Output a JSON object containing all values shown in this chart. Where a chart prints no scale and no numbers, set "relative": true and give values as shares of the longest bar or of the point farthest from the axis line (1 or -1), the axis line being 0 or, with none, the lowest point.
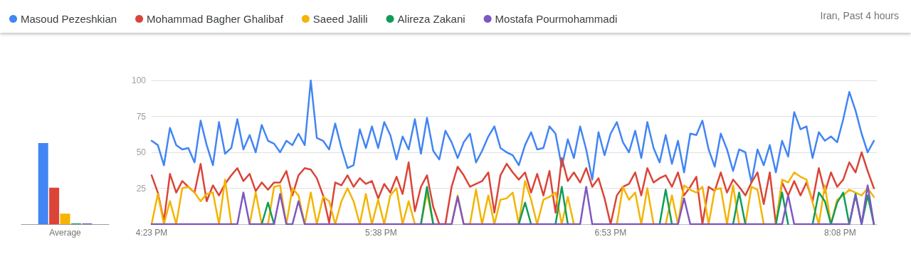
{
  "chart_data": [
    {
      "type": "bar",
      "relative": true,
      "categories": [
        "Average"
      ],
      "series": [
        {
          "color": "#4285f4",
          "values": [
            1
          ]
        },
        {
          "color": "#db4437",
          "values": [
            0.45
          ]
        },
        {
          "color": "#f4b400",
          "values": [
            0.13
          ]
        },
        {
          "color": "#0f9d58",
          "values": [
            0.01
          ]
        },
        {
          "color": "#7e57c2",
          "values": [
            0.01
          ]
        }
      ]
    },
    {
      "type": "line",
      "subtitle": "Iran, Past 4 hours",
      "legend": "top",
      "grid": "y",
      "marker": "none",
      "xlim": [
        16.383,
        20.333
      ],
      "ylim": [
        0,
        100
      ],
      "yticks": [
        25,
        50,
        75,
        100
      ],
      "xticks": [
        {
          "value": 16.383,
          "label": "4:23 PM"
        },
        {
          "value": 17.633,
          "label": "5:38 PM"
        },
        {
          "value": 18.883,
          "label": "6:53 PM"
        },
        {
          "value": 20.133,
          "label": "8:08 PM"
        }
      ],
      "x": [
        16.383,
        16.417,
        16.45,
        16.483,
        16.517,
        16.55,
        16.583,
        16.617,
        16.65,
        16.683,
        16.717,
        16.75,
        16.783,
        16.817,
        16.85,
        16.883,
        16.917,
        16.95,
        16.983,
        17.017,
        17.05,
        17.083,
        17.117,
        17.15,
        17.183,
        17.217,
        17.25,
        17.283,
        17.317,
        17.35,
        17.383,
        17.417,
        17.45,
        17.483,
        17.517,
        17.55,
        17.583,
        17.617,
        17.65,
        17.683,
        17.717,
        17.75,
        17.783,
        17.817,
        17.85,
        17.883,
        17.917,
        17.95,
        17.983,
        18.017,
        18.05,
        18.083,
        18.117,
        18.15,
        18.183,
        18.217,
        18.25,
        18.283,
        18.317,
        18.35,
        18.383,
        18.417,
        18.45,
        18.483,
        18.517,
        18.55,
        18.583,
        18.617,
        18.65,
        18.683,
        18.717,
        18.75,
        18.783,
        18.817,
        18.85,
        18.883,
        18.917,
        18.95,
        18.983,
        19.017,
        19.05,
        19.083,
        19.117,
        19.15,
        19.183,
        19.217,
        19.25,
        19.283,
        19.317,
        19.35,
        19.383,
        19.417,
        19.45,
        19.483,
        19.517,
        19.55,
        19.583,
        19.617,
        19.65,
        19.683,
        19.717,
        19.75,
        19.783,
        19.817,
        19.85,
        19.883,
        19.917,
        19.95,
        19.983,
        20.017,
        20.05,
        20.083,
        20.117,
        20.15,
        20.183,
        20.217,
        20.25,
        20.283,
        20.317
      ],
      "series": [
        {
          "name": "Masoud Pezeshkian",
          "color": "#4285f4",
          "values": [
            58,
            55,
            41,
            67,
            55,
            52,
            53,
            43,
            72,
            55,
            41,
            71,
            49,
            53,
            73,
            52,
            62,
            50,
            69,
            58,
            56,
            50,
            58,
            55,
            63,
            55,
            100,
            60,
            58,
            52,
            70,
            53,
            39,
            41,
            66,
            53,
            68,
            53,
            71,
            62,
            45,
            61,
            52,
            73,
            49,
            74,
            51,
            45,
            65,
            57,
            46,
            57,
            63,
            43,
            51,
            61,
            68,
            53,
            50,
            48,
            41,
            55,
            64,
            52,
            53,
            68,
            63,
            40,
            59,
            46,
            68,
            52,
            31,
            64,
            48,
            63,
            71,
            57,
            50,
            65,
            46,
            71,
            53,
            43,
            62,
            42,
            58,
            36,
            63,
            62,
            72,
            52,
            40,
            63,
            52,
            37,
            52,
            50,
            29,
            52,
            41,
            55,
            36,
            58,
            47,
            78,
            66,
            68,
            46,
            64,
            58,
            61,
            57,
            73,
            92,
            79,
            63,
            50,
            58
          ]
        },
        {
          "name": "Mohammad Bagher Ghalibaf",
          "color": "#db4437",
          "values": [
            34,
            22,
            2,
            35,
            22,
            30,
            26,
            22,
            42,
            16,
            27,
            20,
            28,
            34,
            39,
            30,
            35,
            23,
            29,
            24,
            29,
            29,
            37,
            20,
            34,
            39,
            38,
            32,
            20,
            1,
            29,
            27,
            34,
            26,
            32,
            28,
            30,
            18,
            28,
            22,
            33,
            21,
            43,
            9,
            26,
            34,
            12,
            0,
            0,
            26,
            40,
            34,
            26,
            28,
            30,
            36,
            8,
            34,
            42,
            36,
            31,
            36,
            22,
            35,
            20,
            37,
            8,
            46,
            30,
            36,
            29,
            39,
            26,
            32,
            18,
            0,
            20,
            26,
            28,
            36,
            20,
            39,
            29,
            32,
            34,
            26,
            36,
            20,
            26,
            33,
            0,
            26,
            23,
            36,
            22,
            31,
            26,
            20,
            29,
            36,
            14,
            36,
            0,
            29,
            20,
            30,
            20,
            29,
            16,
            39,
            22,
            36,
            26,
            31,
            43,
            36,
            50,
            37,
            25
          ]
        },
        {
          "name": "Saeed Jalili",
          "color": "#f4b400",
          "values": [
            0,
            21,
            0,
            16,
            0,
            25,
            26,
            22,
            16,
            21,
            22,
            0,
            31,
            0,
            null,
            null,
            0,
            22,
            0,
            0,
            26,
            27,
            0,
            25,
            20,
            0,
            22,
            0,
            19,
            16,
            0,
            16,
            25,
            16,
            0,
            21,
            0,
            17,
            0,
            20,
            25,
            0,
            16,
            0,
            0,
            22,
            0,
            null,
            null,
            0,
            20,
            0,
            0,
            24,
            0,
            20,
            0,
            17,
            18,
            22,
            0,
            30,
            17,
            0,
            17,
            19,
            22,
            0,
            19,
            0,
            null,
            null,
            null,
            null,
            null,
            null,
            0,
            26,
            17,
            22,
            0,
            25,
            0,
            null,
            0,
            20,
            0,
            27,
            24,
            22,
            26,
            0,
            24,
            25,
            0,
            27,
            0,
            0,
            26,
            24,
            0,
            null,
            0,
            31,
            29,
            36,
            33,
            31,
            15,
            0,
            27,
            0,
            17,
            20,
            24,
            22,
            20,
            25,
            19
          ]
        },
        {
          "name": "Alireza Zakani",
          "color": "#0f9d58",
          "values": [
            null,
            null,
            null,
            null,
            null,
            null,
            null,
            null,
            null,
            null,
            null,
            null,
            null,
            null,
            null,
            null,
            null,
            null,
            0,
            15,
            0,
            null,
            null,
            null,
            null,
            null,
            null,
            null,
            null,
            null,
            null,
            null,
            null,
            null,
            null,
            null,
            null,
            null,
            null,
            null,
            null,
            null,
            null,
            null,
            0,
            26,
            0,
            null,
            null,
            null,
            null,
            null,
            null,
            null,
            null,
            null,
            null,
            null,
            null,
            null,
            0,
            15,
            0,
            null,
            null,
            null,
            0,
            26,
            0,
            null,
            null,
            null,
            null,
            null,
            null,
            null,
            null,
            null,
            null,
            null,
            null,
            null,
            null,
            0,
            24,
            0,
            null,
            null,
            null,
            null,
            null,
            null,
            null,
            null,
            null,
            0,
            22,
            0,
            null,
            null,
            null,
            null,
            0,
            22,
            0,
            null,
            null,
            null,
            0,
            22,
            16,
            0,
            15,
            22,
            0,
            21,
            0,
            20,
            0
          ]
        },
        {
          "name": "Mostafa Pourmohammadi",
          "color": "#7e57c2",
          "values": [
            0,
            0,
            0,
            0,
            0,
            0,
            0,
            0,
            0,
            0,
            0,
            0,
            0,
            0,
            0,
            22,
            0,
            0,
            0,
            0,
            0,
            21,
            0,
            0,
            16,
            0,
            0,
            0,
            0,
            0,
            0,
            0,
            0,
            0,
            0,
            0,
            0,
            0,
            0,
            0,
            0,
            0,
            0,
            0,
            0,
            0,
            0,
            0,
            0,
            0,
            19,
            0,
            0,
            0,
            0,
            0,
            0,
            0,
            0,
            0,
            0,
            0,
            0,
            0,
            0,
            0,
            0,
            0,
            0,
            0,
            0,
            26,
            0,
            0,
            0,
            0,
            0,
            0,
            0,
            0,
            0,
            0,
            0,
            0,
            0,
            0,
            0,
            18,
            0,
            0,
            0,
            0,
            0,
            0,
            0,
            0,
            0,
            0,
            0,
            0,
            0,
            0,
            0,
            0,
            20,
            0,
            0,
            0,
            0,
            0,
            0,
            0,
            0,
            0,
            0,
            20,
            0,
            27,
            0
          ]
        }
      ]
    }
  ]
}
